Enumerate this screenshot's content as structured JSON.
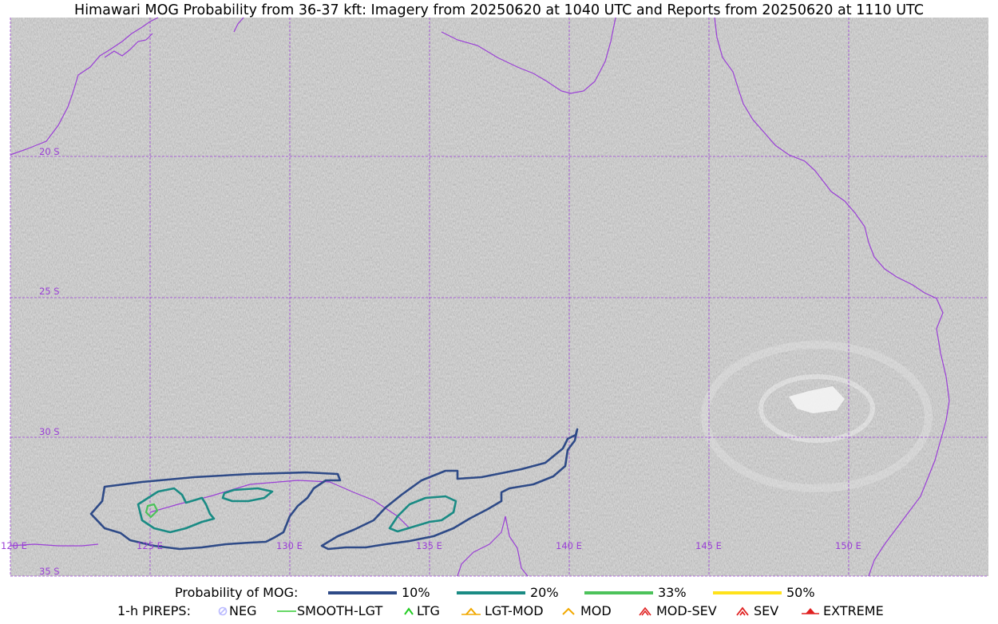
{
  "title": "Himawari MOG Probability from 36-37 kft: Imagery from 20250620 at 1040 UTC and Reports from 20250620 at 1110 UTC",
  "map": {
    "lat_labels": [
      "20 S",
      "25 S",
      "30 S",
      "35 S"
    ],
    "lon_labels": [
      "120 E",
      "125 E",
      "130 E",
      "135 E",
      "140 E",
      "145 E",
      "150 E"
    ],
    "gridline_color": "#9a3fd6",
    "coastline_color": "#9a3fd6"
  },
  "legend": {
    "probability_label": "Probability of MOG:",
    "probability_items": [
      {
        "label": "10%",
        "color": "#2e4a87"
      },
      {
        "label": "20%",
        "color": "#1a8b84"
      },
      {
        "label": "33%",
        "color": "#4cc25a"
      },
      {
        "label": "50%",
        "color": "#ffe21a"
      }
    ],
    "pireps_label": "1-h PIREPS:",
    "pirep_items": [
      {
        "label": "NEG",
        "icon": "neg-icon",
        "color": "#b9b9ff"
      },
      {
        "label": "SMOOTH-LGT",
        "icon": "smooth-lgt-line",
        "color": "#33cc33"
      },
      {
        "label": "LTG",
        "icon": "ltg-caret-icon",
        "color": "#22cc22"
      },
      {
        "label": "LGT-MOD",
        "icon": "lgt-mod-caret-icon",
        "color": "#f2a900"
      },
      {
        "label": "MOD",
        "icon": "mod-caret-icon",
        "color": "#f2a900"
      },
      {
        "label": "MOD-SEV",
        "icon": "mod-sev-caret-icon",
        "color": "#e02020"
      },
      {
        "label": "SEV",
        "icon": "sev-caret-icon",
        "color": "#e02020"
      },
      {
        "label": "EXTREME",
        "icon": "extreme-caret-icon",
        "color": "#e02020"
      }
    ]
  }
}
